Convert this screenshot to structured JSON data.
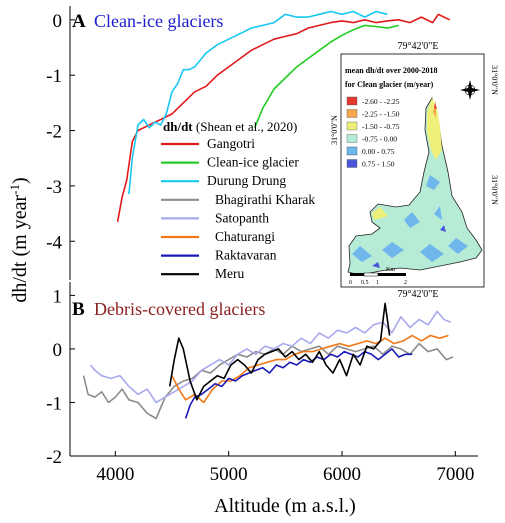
{
  "chart_data": {
    "type": "line",
    "xlabel": "Altitude (m a.s.l.)",
    "ylabel_main": "dh/dt (m year",
    "ylabel_sup": "-1",
    "ylabel_close": ")",
    "x_ticks": [
      4000,
      5000,
      6000,
      7000
    ],
    "xlim": [
      3600,
      7200
    ],
    "panels": [
      {
        "id": "A",
        "letter": "A",
        "title": "Clean-ice glaciers",
        "title_color": "#1c1ccc",
        "ylim": [
          -4.7,
          0.25
        ],
        "y_ticks": [
          0,
          -1,
          -2,
          -3,
          -4
        ],
        "series": [
          {
            "name": "Gangotri",
            "color": "#e11b1b",
            "x": [
              4020,
              4060,
              4100,
              4150,
              4200,
              4300,
              4400,
              4500,
              4600,
              4700,
              4800,
              4900,
              5000,
              5100,
              5200,
              5300,
              5400,
              5500,
              5600,
              5700,
              5800,
              5900,
              6000,
              6100,
              6200,
              6300,
              6400,
              6500,
              6600,
              6700,
              6800,
              6850,
              6900,
              6950
            ],
            "y": [
              -3.65,
              -3.2,
              -2.9,
              -2.2,
              -2.0,
              -1.9,
              -1.8,
              -1.7,
              -1.5,
              -1.3,
              -1.2,
              -1.0,
              -0.85,
              -0.7,
              -0.55,
              -0.45,
              -0.35,
              -0.3,
              -0.25,
              -0.15,
              -0.1,
              -0.05,
              -0.02,
              -0.05,
              0.0,
              -0.05,
              -0.02,
              0.0,
              -0.05,
              0.05,
              -0.05,
              0.1,
              0.05,
              0.0
            ]
          },
          {
            "name": "Clean-ice glacier",
            "color": "#22cc22",
            "x": [
              5230,
              5300,
              5400,
              5500,
              5600,
              5700,
              5800,
              5900,
              6000,
              6100,
              6200,
              6300,
              6400,
              6500
            ],
            "y": [
              -1.95,
              -1.6,
              -1.25,
              -1.05,
              -0.85,
              -0.7,
              -0.55,
              -0.4,
              -0.28,
              -0.18,
              -0.1,
              -0.12,
              -0.15,
              -0.1
            ]
          },
          {
            "name": "Durung Drung",
            "color": "#18c8f0",
            "x": [
              4120,
              4150,
              4200,
              4250,
              4300,
              4350,
              4400,
              4450,
              4500,
              4550,
              4600,
              4650,
              4700,
              4800,
              4900,
              5000,
              5100,
              5200,
              5300,
              5400,
              5500,
              5600,
              5700,
              5800,
              5900,
              6000,
              6100,
              6200,
              6300,
              6400
            ],
            "y": [
              -3.15,
              -2.5,
              -1.9,
              -1.8,
              -1.95,
              -1.85,
              -1.9,
              -1.7,
              -1.3,
              -1.15,
              -0.9,
              -0.9,
              -0.85,
              -0.6,
              -0.45,
              -0.35,
              -0.25,
              -0.15,
              -0.1,
              -0.05,
              0.1,
              0.05,
              0.05,
              0.1,
              0.15,
              0.1,
              0.15,
              0.05,
              0.15,
              0.1
            ]
          }
        ]
      },
      {
        "id": "B",
        "letter": "B",
        "title": "Debris-covered glaciers",
        "title_color": "#8b2020",
        "ylim": [
          -2,
          1.25
        ],
        "y_ticks": [
          1,
          0,
          -1,
          -2
        ],
        "series": [
          {
            "name": "Bhagirathi Kharak",
            "color": "#8c8c8c",
            "x": [
              3720,
              3760,
              3820,
              3880,
              3940,
              4000,
              4060,
              4120,
              4200,
              4280,
              4360,
              4440,
              4520,
              4600,
              4680,
              4760,
              4840,
              4920,
              5000,
              5080,
              5160,
              5240,
              5320,
              5400,
              5480,
              5560,
              5640,
              5720,
              5800,
              5880,
              5960,
              6040,
              6120,
              6200,
              6280,
              6360,
              6440,
              6520,
              6600,
              6680,
              6760,
              6840,
              6920,
              6980
            ],
            "y": [
              -0.5,
              -0.85,
              -0.9,
              -0.8,
              -1.0,
              -0.9,
              -0.75,
              -0.95,
              -1.0,
              -1.2,
              -1.3,
              -0.9,
              -0.7,
              -0.6,
              -0.55,
              -0.4,
              -0.45,
              -0.3,
              -0.2,
              -0.1,
              -0.15,
              -0.05,
              -0.1,
              0.0,
              -0.1,
              0.05,
              -0.05,
              0.0,
              0.05,
              -0.1,
              0.05,
              0.0,
              -0.05,
              0.0,
              0.05,
              -0.1,
              0.05,
              0.0,
              -0.1,
              0.1,
              -0.05,
              0.0,
              -0.2,
              -0.15
            ]
          },
          {
            "name": "Satopanth",
            "color": "#a9a9ee",
            "x": [
              3780,
              3820,
              3880,
              3960,
              4040,
              4120,
              4200,
              4280,
              4360,
              4440,
              4520,
              4600,
              4680,
              4760,
              4840,
              4920,
              5000,
              5080,
              5160,
              5240,
              5320,
              5400,
              5480,
              5560,
              5640,
              5720,
              5800,
              5880,
              5960,
              6040,
              6120,
              6200,
              6280,
              6360,
              6440,
              6520,
              6600,
              6680,
              6760,
              6840,
              6900,
              6960
            ],
            "y": [
              -0.3,
              -0.4,
              -0.5,
              -0.55,
              -0.5,
              -0.7,
              -0.85,
              -0.75,
              -1.0,
              -0.9,
              -0.8,
              -0.7,
              -0.6,
              -0.4,
              -0.3,
              -0.2,
              -0.3,
              -0.1,
              0.0,
              -0.1,
              0.05,
              0.0,
              0.1,
              0.05,
              0.2,
              0.1,
              0.3,
              0.2,
              0.35,
              0.3,
              0.4,
              0.3,
              0.45,
              0.5,
              0.3,
              0.6,
              0.4,
              0.55,
              0.45,
              0.7,
              0.55,
              0.5
            ]
          },
          {
            "name": "Chaturangi",
            "color": "#f07818",
            "x": [
              4500,
              4560,
              4620,
              4700,
              4780,
              4860,
              4940,
              5020,
              5100,
              5180,
              5260,
              5340,
              5420,
              5500,
              5580,
              5660,
              5740,
              5820,
              5900,
              5980,
              6060,
              6140,
              6220,
              6300,
              6380,
              6460,
              6540,
              6620,
              6700,
              6780,
              6860,
              6940
            ],
            "y": [
              -0.5,
              -0.75,
              -0.95,
              -0.85,
              -1.0,
              -0.75,
              -0.6,
              -0.6,
              -0.5,
              -0.35,
              -0.3,
              -0.25,
              -0.2,
              -0.2,
              -0.1,
              -0.05,
              -0.05,
              0.0,
              0.05,
              0.1,
              0.05,
              0.1,
              0.15,
              0.1,
              0.2,
              0.1,
              0.15,
              0.25,
              0.15,
              0.25,
              0.2,
              0.25
            ]
          },
          {
            "name": "Raktavaran",
            "color": "#1a1ab8",
            "x": [
              4620,
              4660,
              4700,
              4760,
              4820,
              4880,
              4940,
              5000,
              5060,
              5120,
              5180,
              5240,
              5300,
              5360,
              5420,
              5480,
              5540,
              5600,
              5660,
              5720,
              5780,
              5840,
              5900,
              5960,
              6020,
              6080,
              6140,
              6200,
              6260,
              6320,
              6380,
              6440,
              6500,
              6560,
              6620
            ],
            "y": [
              -1.3,
              -1.05,
              -0.9,
              -0.85,
              -0.75,
              -0.65,
              -0.7,
              -0.55,
              -0.6,
              -0.5,
              -0.45,
              -0.4,
              -0.35,
              -0.45,
              -0.3,
              -0.35,
              -0.25,
              -0.3,
              -0.2,
              -0.25,
              -0.15,
              -0.2,
              -0.1,
              -0.15,
              -0.05,
              -0.1,
              -0.15,
              -0.05,
              -0.1,
              -0.2,
              -0.1,
              0.0,
              -0.15,
              -0.1,
              -0.1
            ]
          },
          {
            "name": "Meru",
            "color": "#000000",
            "x": [
              4480,
              4520,
              4560,
              4600,
              4660,
              4720,
              4780,
              4840,
              4900,
              4960,
              5020,
              5080,
              5140,
              5200,
              5260,
              5320,
              5380,
              5440,
              5500,
              5560,
              5620,
              5680,
              5740,
              5800,
              5860,
              5920,
              5980,
              6040,
              6100,
              6160,
              6220,
              6280,
              6340,
              6380,
              6420
            ],
            "y": [
              -0.7,
              -0.2,
              0.2,
              0.0,
              -0.6,
              -0.95,
              -0.7,
              -0.6,
              -0.5,
              -0.55,
              -0.3,
              -0.2,
              -0.3,
              -0.45,
              -0.2,
              -0.1,
              -0.05,
              0.0,
              -0.15,
              -0.05,
              -0.2,
              -0.1,
              -0.25,
              -0.05,
              -0.3,
              -0.45,
              -0.2,
              -0.5,
              -0.1,
              -0.3,
              0.05,
              0.0,
              0.15,
              0.85,
              0.25
            ]
          }
        ]
      }
    ]
  },
  "legend": {
    "title_bold": "dh/dt",
    "title_rest": " (Shean et al., 2020)"
  },
  "map": {
    "top_label": "79°42'0\"E",
    "bottom_label": "79°42'0\"E",
    "lat_top": "31°0'0\"N",
    "lat_mid": "31°0'0\"N",
    "legend_title_1": "mean dh/dt over 2000-2018",
    "legend_title_2": "for Clean glacier (m/year)",
    "classes": [
      {
        "label": "-2.60 - -2.25",
        "color": "#e8372c"
      },
      {
        "label": "-2.25 - -1.50",
        "color": "#f5a84c"
      },
      {
        "label": "-1.50 - -0.75",
        "color": "#eef07a"
      },
      {
        "label": "-0.75 - 0.00",
        "color": "#b6ecd6"
      },
      {
        "label": "0.00 - 0.75",
        "color": "#6fb6ec"
      },
      {
        "label": "0.75 - 1.50",
        "color": "#4a55d8"
      }
    ],
    "scale_labels": [
      "0",
      "0.5",
      "1",
      "2"
    ],
    "scale_unit": "Km"
  }
}
